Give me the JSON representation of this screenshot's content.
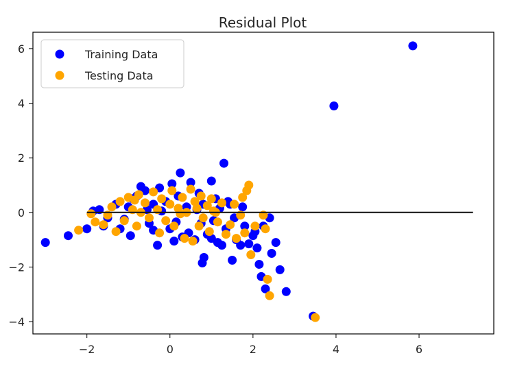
{
  "chart_data": {
    "type": "scatter",
    "title": "Residual Plot",
    "xlabel": "",
    "ylabel": "",
    "xlim": [
      -3.3,
      7.8
    ],
    "ylim": [
      -4.45,
      6.6
    ],
    "xticks": [
      -2,
      0,
      2,
      4,
      6
    ],
    "xtick_labels": [
      "−2",
      "0",
      "2",
      "4",
      "6"
    ],
    "yticks": [
      -4,
      -2,
      0,
      2,
      4,
      6
    ],
    "ytick_labels": [
      "−4",
      "−2",
      "0",
      "2",
      "4",
      "6"
    ],
    "legend_position": "top-left",
    "hline": {
      "y": 0,
      "xmin": -2,
      "xmax": 7.3,
      "color": "#1a1a1a"
    },
    "series": [
      {
        "name": "Training Data",
        "color": "#0000ff",
        "points": [
          [
            -3.0,
            -1.1
          ],
          [
            -2.45,
            -0.85
          ],
          [
            -2.0,
            -0.6
          ],
          [
            -1.85,
            0.05
          ],
          [
            -1.7,
            0.1
          ],
          [
            -1.6,
            -0.5
          ],
          [
            -1.5,
            -0.2
          ],
          [
            -1.3,
            0.3
          ],
          [
            -1.2,
            -0.6
          ],
          [
            -1.0,
            0.2
          ],
          [
            -0.95,
            -0.85
          ],
          [
            -0.9,
            0.5
          ],
          [
            -0.8,
            0.6
          ],
          [
            -0.7,
            0.95
          ],
          [
            -0.6,
            0.8
          ],
          [
            -0.5,
            -0.4
          ],
          [
            -0.4,
            0.3
          ],
          [
            -0.3,
            -1.2
          ],
          [
            -0.25,
            0.9
          ],
          [
            -0.2,
            0.05
          ],
          [
            -0.1,
            0.4
          ],
          [
            0.0,
            -0.6
          ],
          [
            0.05,
            1.05
          ],
          [
            0.1,
            -1.05
          ],
          [
            0.2,
            0.6
          ],
          [
            0.25,
            1.45
          ],
          [
            0.3,
            -0.9
          ],
          [
            0.4,
            0.2
          ],
          [
            0.5,
            1.1
          ],
          [
            0.6,
            -1.0
          ],
          [
            0.7,
            0.7
          ],
          [
            0.75,
            -0.4
          ],
          [
            0.8,
            0.3
          ],
          [
            0.9,
            -0.8
          ],
          [
            1.0,
            1.15
          ],
          [
            1.05,
            -0.3
          ],
          [
            1.1,
            0.5
          ],
          [
            1.15,
            -1.1
          ],
          [
            1.2,
            0.15
          ],
          [
            1.25,
            -1.2
          ],
          [
            1.3,
            1.8
          ],
          [
            1.35,
            -0.6
          ],
          [
            1.4,
            0.4
          ],
          [
            1.5,
            -1.75
          ],
          [
            1.55,
            -0.2
          ],
          [
            1.6,
            -1.0
          ],
          [
            1.7,
            -1.2
          ],
          [
            1.75,
            0.2
          ],
          [
            1.8,
            -0.5
          ],
          [
            1.9,
            -1.15
          ],
          [
            2.0,
            -0.85
          ],
          [
            2.05,
            -0.7
          ],
          [
            2.1,
            -1.3
          ],
          [
            2.15,
            -1.9
          ],
          [
            2.2,
            -2.35
          ],
          [
            2.25,
            -0.5
          ],
          [
            2.3,
            -2.8
          ],
          [
            2.4,
            -0.2
          ],
          [
            2.45,
            -1.5
          ],
          [
            2.55,
            -1.1
          ],
          [
            2.65,
            -2.1
          ],
          [
            2.8,
            -2.9
          ],
          [
            0.78,
            -1.85
          ],
          [
            0.82,
            -1.65
          ],
          [
            3.45,
            -3.8
          ],
          [
            3.95,
            3.9
          ],
          [
            5.85,
            6.1
          ],
          [
            -0.4,
            -0.65
          ],
          [
            0.45,
            -0.75
          ],
          [
            1.0,
            -0.95
          ],
          [
            -1.1,
            -0.25
          ],
          [
            -0.55,
            0.1
          ],
          [
            0.15,
            -0.35
          ],
          [
            0.65,
            0.1
          ],
          [
            1.45,
            0.3
          ]
        ]
      },
      {
        "name": "Testing Data",
        "color": "#ffa500",
        "points": [
          [
            -2.2,
            -0.65
          ],
          [
            -1.9,
            -0.05
          ],
          [
            -1.8,
            -0.35
          ],
          [
            -1.6,
            -0.45
          ],
          [
            -1.5,
            -0.1
          ],
          [
            -1.4,
            0.2
          ],
          [
            -1.3,
            -0.7
          ],
          [
            -1.2,
            0.4
          ],
          [
            -1.1,
            -0.3
          ],
          [
            -1.0,
            0.55
          ],
          [
            -0.9,
            0.1
          ],
          [
            -0.8,
            -0.5
          ],
          [
            -0.75,
            0.65
          ],
          [
            -0.7,
            0.0
          ],
          [
            -0.6,
            0.35
          ],
          [
            -0.5,
            -0.2
          ],
          [
            -0.4,
            0.75
          ],
          [
            -0.3,
            0.1
          ],
          [
            -0.25,
            -0.75
          ],
          [
            -0.2,
            0.5
          ],
          [
            -0.1,
            -0.3
          ],
          [
            0.0,
            0.3
          ],
          [
            0.05,
            0.8
          ],
          [
            0.1,
            -0.5
          ],
          [
            0.2,
            0.15
          ],
          [
            0.3,
            0.55
          ],
          [
            0.35,
            -0.95
          ],
          [
            0.4,
            0.0
          ],
          [
            0.5,
            0.85
          ],
          [
            0.55,
            -1.05
          ],
          [
            0.6,
            0.4
          ],
          [
            0.7,
            -0.5
          ],
          [
            0.75,
            0.6
          ],
          [
            0.8,
            -0.2
          ],
          [
            0.9,
            0.25
          ],
          [
            0.95,
            -0.7
          ],
          [
            1.0,
            0.5
          ],
          [
            1.1,
            0.0
          ],
          [
            1.15,
            -0.35
          ],
          [
            1.25,
            0.35
          ],
          [
            1.35,
            -0.8
          ],
          [
            1.45,
            -0.45
          ],
          [
            1.55,
            0.3
          ],
          [
            1.6,
            -0.95
          ],
          [
            1.7,
            -0.1
          ],
          [
            1.75,
            0.55
          ],
          [
            1.8,
            -0.75
          ],
          [
            1.85,
            0.8
          ],
          [
            1.9,
            1.0
          ],
          [
            1.95,
            -1.55
          ],
          [
            2.05,
            -0.5
          ],
          [
            2.25,
            -0.1
          ],
          [
            2.3,
            -0.6
          ],
          [
            2.35,
            -2.45
          ],
          [
            2.4,
            -3.05
          ],
          [
            3.5,
            -3.85
          ],
          [
            -0.85,
            0.45
          ],
          [
            0.25,
            -0.05
          ],
          [
            0.65,
            0.15
          ],
          [
            1.05,
            0.05
          ]
        ]
      }
    ]
  }
}
